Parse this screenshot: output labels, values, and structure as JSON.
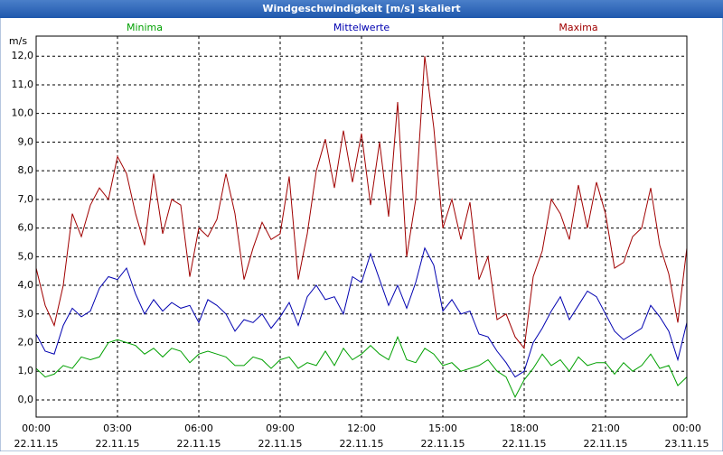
{
  "chart_data": {
    "type": "line",
    "title": "Windgeschwindigkeit [m/s] skaliert",
    "y_unit": "m/s",
    "x": [
      0,
      20,
      40,
      60,
      80,
      100,
      120,
      140,
      160,
      180,
      200,
      220,
      240,
      260,
      280,
      300,
      320,
      340,
      360,
      380,
      400,
      420,
      440,
      460,
      480,
      500,
      520,
      540,
      560,
      580,
      600,
      620,
      640,
      660,
      680,
      700,
      720,
      740,
      760,
      780,
      800,
      820,
      840,
      860,
      880,
      900,
      920,
      940,
      960,
      980,
      1000,
      1020,
      1040,
      1060,
      1080,
      1100,
      1120,
      1140,
      1160,
      1180,
      1200,
      1220,
      1240,
      1260,
      1280,
      1300,
      1320,
      1340,
      1360,
      1380,
      1400,
      1420,
      1440
    ],
    "xlim": [
      0,
      1440
    ],
    "xticks": [
      {
        "value": 0,
        "label": "00:00",
        "date": "22.11.15"
      },
      {
        "value": 180,
        "label": "03:00",
        "date": "22.11.15"
      },
      {
        "value": 360,
        "label": "06:00",
        "date": "22.11.15"
      },
      {
        "value": 540,
        "label": "09:00",
        "date": "22.11.15"
      },
      {
        "value": 720,
        "label": "12:00",
        "date": "22.11.15"
      },
      {
        "value": 900,
        "label": "15:00",
        "date": "22.11.15"
      },
      {
        "value": 1080,
        "label": "18:00",
        "date": "22.11.15"
      },
      {
        "value": 1260,
        "label": "21:00",
        "date": "22.11.15"
      },
      {
        "value": 1440,
        "label": "00:00",
        "date": "23.11.15"
      }
    ],
    "ylim": [
      -0.6,
      12.7
    ],
    "yticks": [
      {
        "value": 0,
        "label": "0,0"
      },
      {
        "value": 1,
        "label": "1,0"
      },
      {
        "value": 2,
        "label": "2,0"
      },
      {
        "value": 3,
        "label": "3,0"
      },
      {
        "value": 4,
        "label": "4,0"
      },
      {
        "value": 5,
        "label": "5,0"
      },
      {
        "value": 6,
        "label": "6,0"
      },
      {
        "value": 7,
        "label": "7,0"
      },
      {
        "value": 8,
        "label": "8,0"
      },
      {
        "value": 9,
        "label": "9,0"
      },
      {
        "value": 10,
        "label": "10,0"
      },
      {
        "value": 11,
        "label": "11,0"
      },
      {
        "value": 12,
        "label": "12,0"
      }
    ],
    "grid": true,
    "series": [
      {
        "name": "Minima",
        "color": "#00a000",
        "values": [
          1.1,
          0.8,
          0.9,
          1.2,
          1.1,
          1.5,
          1.4,
          1.5,
          2.0,
          2.1,
          2.0,
          1.9,
          1.6,
          1.8,
          1.5,
          1.8,
          1.7,
          1.3,
          1.6,
          1.7,
          1.6,
          1.5,
          1.2,
          1.2,
          1.5,
          1.4,
          1.1,
          1.4,
          1.5,
          1.1,
          1.3,
          1.2,
          1.7,
          1.2,
          1.8,
          1.4,
          1.6,
          1.9,
          1.6,
          1.4,
          2.2,
          1.4,
          1.3,
          1.8,
          1.6,
          1.2,
          1.3,
          1.0,
          1.1,
          1.2,
          1.4,
          1.0,
          0.8,
          0.1,
          0.7,
          1.1,
          1.6,
          1.2,
          1.4,
          1.0,
          1.5,
          1.2,
          1.3,
          1.3,
          0.9,
          1.3,
          1.0,
          1.2,
          1.6,
          1.1,
          1.2,
          0.5,
          0.8
        ]
      },
      {
        "name": "Mittelwerte",
        "color": "#0000b0",
        "values": [
          2.3,
          1.7,
          1.6,
          2.6,
          3.2,
          2.9,
          3.1,
          3.9,
          4.3,
          4.2,
          4.6,
          3.7,
          3.0,
          3.5,
          3.1,
          3.4,
          3.2,
          3.3,
          2.7,
          3.5,
          3.3,
          3.0,
          2.4,
          2.8,
          2.7,
          3.0,
          2.5,
          2.9,
          3.4,
          2.6,
          3.6,
          4.0,
          3.5,
          3.6,
          3.0,
          4.3,
          4.1,
          5.1,
          4.2,
          3.3,
          4.0,
          3.2,
          4.1,
          5.3,
          4.7,
          3.1,
          3.5,
          3.0,
          3.1,
          2.3,
          2.2,
          1.7,
          1.3,
          0.8,
          1.0,
          2.0,
          2.5,
          3.1,
          3.6,
          2.8,
          3.3,
          3.8,
          3.6,
          3.0,
          2.4,
          2.1,
          2.3,
          2.5,
          3.3,
          2.9,
          2.4,
          1.4,
          2.7
        ]
      },
      {
        "name": "Maxima",
        "color": "#a00000",
        "values": [
          4.6,
          3.3,
          2.6,
          4.0,
          6.5,
          5.7,
          6.8,
          7.4,
          7.0,
          8.5,
          7.9,
          6.5,
          5.4,
          7.9,
          5.8,
          7.0,
          6.8,
          4.3,
          6.0,
          5.7,
          6.3,
          7.9,
          6.5,
          4.2,
          5.3,
          6.2,
          5.6,
          5.8,
          7.8,
          4.2,
          5.8,
          8.0,
          9.1,
          7.4,
          9.4,
          7.6,
          9.3,
          6.8,
          9.0,
          6.4,
          10.4,
          5.0,
          7.0,
          12.0,
          9.5,
          6.0,
          7.0,
          5.6,
          6.9,
          4.2,
          5.0,
          2.8,
          3.0,
          2.2,
          1.8,
          4.3,
          5.2,
          7.0,
          6.5,
          5.6,
          7.5,
          6.0,
          7.6,
          6.5,
          4.6,
          4.8,
          5.7,
          6.0,
          7.4,
          5.4,
          4.4,
          2.7,
          5.3
        ]
      }
    ]
  }
}
